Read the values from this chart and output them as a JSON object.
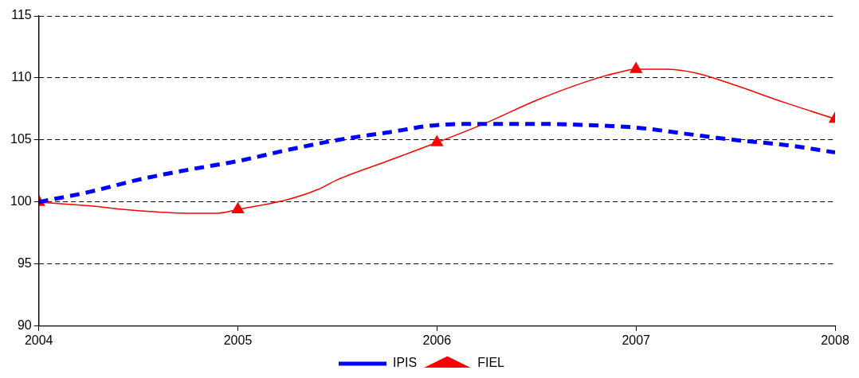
{
  "chart_data": {
    "type": "line",
    "xlim": [
      2004,
      2008
    ],
    "xticks": [
      2004,
      2005,
      2006,
      2007,
      2008
    ],
    "ylim": [
      90,
      115
    ],
    "yticks": [
      90,
      95,
      100,
      105,
      110,
      115
    ],
    "grid": "y",
    "legend": "bottom",
    "series": [
      {
        "name": "IPIS",
        "color": "#0000ff",
        "line_style": "dashed",
        "marker": "none",
        "x": [
          2004,
          2004.25,
          2004.5,
          2004.75,
          2005,
          2005.25,
          2005.5,
          2005.75,
          2006,
          2006.25,
          2006.5,
          2006.75,
          2007,
          2007.25,
          2007.5,
          2007.75,
          2008
        ],
        "values": [
          100,
          100.8,
          101.8,
          102.6,
          103.3,
          104.2,
          105,
          105.6,
          106.2,
          106.3,
          106.3,
          106.2,
          106,
          105.5,
          105,
          104.6,
          104
        ]
      },
      {
        "color": "#ff0000",
        "line_style": "solid",
        "marker": "none",
        "x": [
          2004,
          2004.25,
          2004.5,
          2004.75,
          2004.9,
          2005,
          2005.25,
          2005.4,
          2005.5,
          2005.75,
          2006,
          2006.25,
          2006.5,
          2006.75,
          2006.9,
          2007,
          2007.15,
          2007.3,
          2007.5,
          2007.75,
          2008
        ],
        "values": [
          100,
          99.7,
          99.3,
          99.1,
          99.1,
          99.4,
          100.2,
          101,
          101.8,
          103.3,
          104.8,
          106.4,
          108.2,
          109.7,
          110.4,
          110.7,
          110.7,
          110.4,
          109.4,
          108,
          106.7
        ]
      },
      {
        "name": "FIEL",
        "type": "scatter",
        "color": "#ff0000",
        "marker": "triangle",
        "x": [
          2004,
          2005,
          2006,
          2007,
          2008
        ],
        "values": [
          100,
          99.4,
          104.8,
          110.7,
          106.7
        ]
      }
    ]
  }
}
